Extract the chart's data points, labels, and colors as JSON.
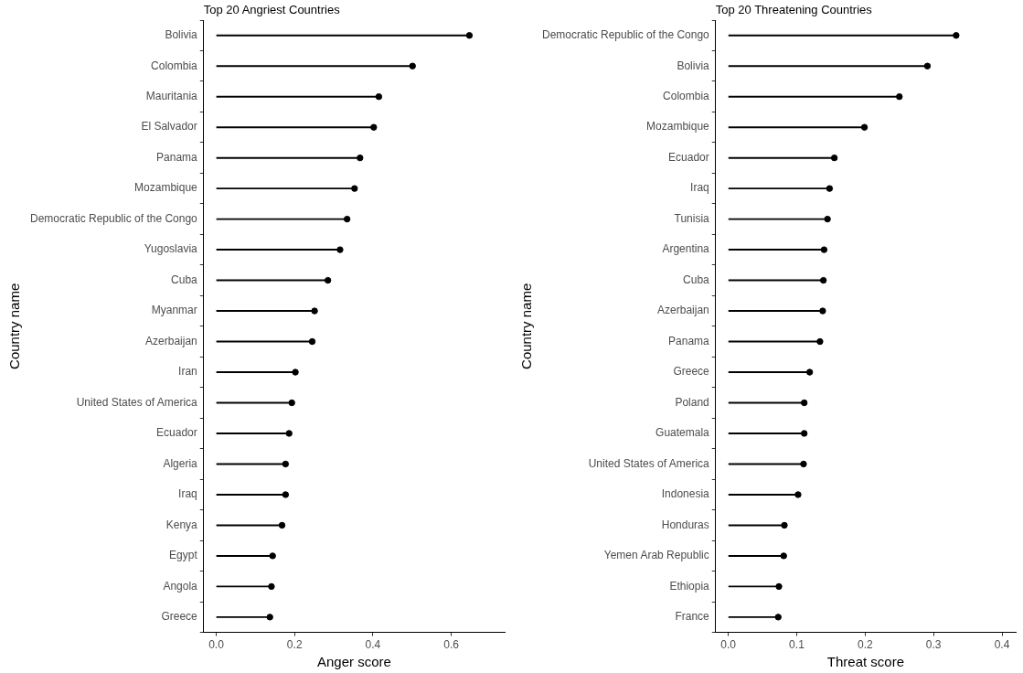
{
  "chart_data": [
    {
      "type": "lollipop",
      "title": "Top 20 Angriest Countries",
      "xlabel": "Anger score",
      "ylabel": "Country name",
      "orientation": "horizontal",
      "marker": "circle",
      "color": "#000000",
      "categories": [
        "Bolivia",
        "Colombia",
        "Mauritania",
        "El Salvador",
        "Panama",
        "Mozambique",
        "Democratic Republic of the Congo",
        "Yugoslavia",
        "Cuba",
        "Myanmar",
        "Azerbaijan",
        "Iran",
        "United States of America",
        "Ecuador",
        "Algeria",
        "Iraq",
        "Kenya",
        "Egypt",
        "Angola",
        "Greece"
      ],
      "values": [
        0.646,
        0.501,
        0.415,
        0.402,
        0.367,
        0.353,
        0.334,
        0.316,
        0.285,
        0.251,
        0.245,
        0.202,
        0.193,
        0.186,
        0.177,
        0.177,
        0.168,
        0.144,
        0.141,
        0.137
      ],
      "xlim": [
        -0.032,
        0.736
      ],
      "xticks": [
        {
          "value": 0,
          "label": "0.0"
        },
        0.2,
        0.4,
        0.6
      ]
    },
    {
      "type": "lollipop",
      "title": "Top 20 Threatening Countries",
      "xlabel": "Threat score",
      "ylabel": "Country name",
      "orientation": "horizontal",
      "marker": "circle",
      "color": "#000000",
      "categories": [
        "Democratic Republic of the Congo",
        "Bolivia",
        "Colombia",
        "Mozambique",
        "Ecuador",
        "Iraq",
        "Tunisia",
        "Argentina",
        "Cuba",
        "Azerbaijan",
        "Panama",
        "Greece",
        "Poland",
        "Guatemala",
        "United States of America",
        "Indonesia",
        "Honduras",
        "Yemen Arab Republic",
        "Ethiopia",
        "France"
      ],
      "values": [
        0.333,
        0.291,
        0.25,
        0.199,
        0.155,
        0.148,
        0.145,
        0.14,
        0.139,
        0.138,
        0.134,
        0.119,
        0.111,
        0.111,
        0.11,
        0.102,
        0.082,
        0.081,
        0.074,
        0.073
      ],
      "xlim": [
        -0.0185,
        0.42
      ],
      "xticks": [
        {
          "value": 0,
          "label": "0.0"
        },
        0.1,
        0.2,
        0.3,
        0.4
      ]
    }
  ]
}
